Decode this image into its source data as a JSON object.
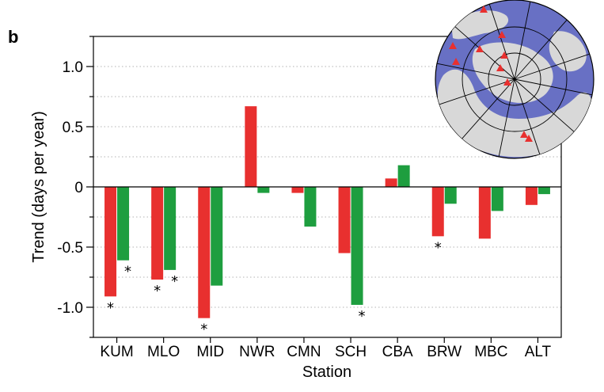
{
  "panel_label": "b",
  "chart_data": {
    "type": "bar",
    "xlabel": "Station",
    "ylabel": "Trend (days per year)",
    "ylim": [
      -1.25,
      1.25
    ],
    "yticks": [
      1.0,
      0.5,
      0,
      -0.5,
      -1.0
    ],
    "ytick_labels": [
      "1.0",
      "0.5",
      "0",
      "-0.5",
      "-1.0"
    ],
    "grid": "horizontal dotted",
    "categories": [
      "KUM",
      "MLO",
      "MID",
      "NWR",
      "CMN",
      "SCH",
      "CBA",
      "BRW",
      "MBC",
      "ALT"
    ],
    "series": [
      {
        "color": "#e8302f",
        "values": [
          -0.91,
          -0.77,
          -1.09,
          0.67,
          -0.05,
          -0.55,
          0.07,
          -0.41,
          -0.43,
          -0.15
        ]
      },
      {
        "color": "#1e9e3f",
        "values": [
          -0.61,
          -0.69,
          -0.82,
          -0.05,
          -0.33,
          -0.98,
          0.18,
          -0.14,
          -0.2,
          -0.06
        ]
      }
    ],
    "significance_marker": "*",
    "significant": [
      {
        "category": "KUM",
        "series": 0
      },
      {
        "category": "KUM",
        "series": 1
      },
      {
        "category": "MLO",
        "series": 0
      },
      {
        "category": "MLO",
        "series": 1
      },
      {
        "category": "MID",
        "series": 0
      },
      {
        "category": "SCH",
        "series": 1
      },
      {
        "category": "BRW",
        "series": 0
      }
    ]
  },
  "inset_map": {
    "description_icon": "polar-globe-icon",
    "ocean_color": "#6870c4",
    "land_color": "#d8d8d8",
    "marker_color": "#e8302f",
    "marker_count": 10
  }
}
